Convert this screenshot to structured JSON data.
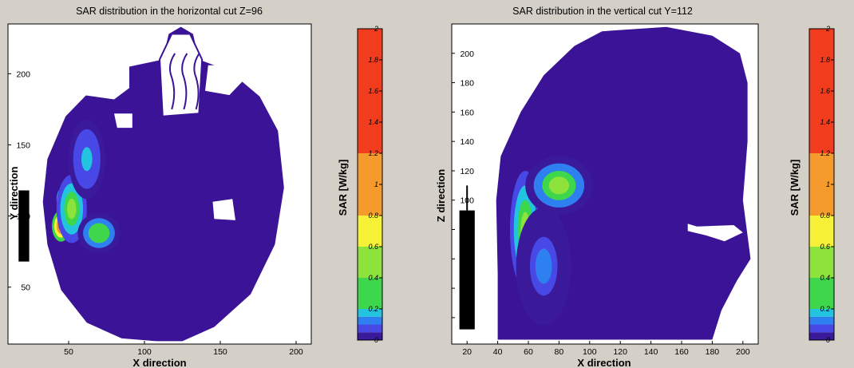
{
  "colors": {
    "figure_background": "#d4d0c8",
    "axes_background": "#ffffff",
    "tissue": "#3b1396",
    "antenna": "#000000"
  },
  "chart_data": [
    {
      "type": "heatmap",
      "title": "SAR distribution in the horizontal cut Z=96",
      "xlabel": "X direction",
      "ylabel": "Y direction",
      "xlim": [
        10,
        210
      ],
      "ylim": [
        10,
        235
      ],
      "xticks": [
        50,
        100,
        150,
        200
      ],
      "yticks": [
        50,
        100,
        150,
        200
      ],
      "colorbar": {
        "label": "SAR [W/kg]",
        "range": [
          0,
          2
        ],
        "ticks": [
          "0",
          "0.2",
          "0.4",
          "0.6",
          "0.8",
          "1",
          "1.2",
          "1.4",
          "1.6",
          "1.8",
          "2"
        ]
      },
      "head_outline": [
        [
          108,
          12
        ],
        [
          85,
          14
        ],
        [
          62,
          25
        ],
        [
          45,
          48
        ],
        [
          36,
          80
        ],
        [
          33,
          110
        ],
        [
          36,
          140
        ],
        [
          48,
          170
        ],
        [
          68,
          192
        ],
        [
          90,
          205
        ],
        [
          112,
          210
        ],
        [
          116,
          228
        ],
        [
          124,
          233
        ],
        [
          132,
          228
        ],
        [
          136,
          210
        ],
        [
          156,
          202
        ],
        [
          176,
          184
        ],
        [
          188,
          160
        ],
        [
          192,
          120
        ],
        [
          186,
          80
        ],
        [
          170,
          45
        ],
        [
          146,
          22
        ],
        [
          125,
          12
        ]
      ],
      "cavities": [
        [
          [
            60,
            185
          ],
          [
            60,
            205
          ],
          [
            78,
            210
          ],
          [
            90,
            205
          ],
          [
            90,
            190
          ],
          [
            80,
            182
          ]
        ],
        [
          [
            140,
            188
          ],
          [
            142,
            206
          ],
          [
            156,
            206
          ],
          [
            165,
            195
          ],
          [
            156,
            185
          ]
        ],
        [
          [
            82,
            162
          ],
          [
            80,
            172
          ],
          [
            92,
            172
          ],
          [
            92,
            162
          ]
        ],
        [
          [
            146,
            98
          ],
          [
            145,
            110
          ],
          [
            158,
            112
          ],
          [
            160,
            97
          ]
        ]
      ],
      "sinus_outline": [
        [
          112,
          170
        ],
        [
          110,
          210
        ],
        [
          118,
          228
        ],
        [
          130,
          228
        ],
        [
          138,
          210
        ],
        [
          136,
          172
        ]
      ],
      "antenna": {
        "x": [
          17,
          24
        ],
        "y": [
          68,
          118
        ]
      },
      "hotspots": [
        {
          "x": 45,
          "y": 93,
          "rx": 6,
          "ry": 11,
          "value": 1.8
        },
        {
          "x": 44,
          "y": 112,
          "rx": 2,
          "ry": 6,
          "value": 1.1
        },
        {
          "x": 52,
          "y": 105,
          "rx": 10,
          "ry": 24,
          "value": 0.5
        },
        {
          "x": 70,
          "y": 88,
          "rx": 14,
          "ry": 14,
          "value": 0.35
        },
        {
          "x": 62,
          "y": 140,
          "rx": 12,
          "ry": 28,
          "value": 0.15
        }
      ]
    },
    {
      "type": "heatmap",
      "title": "SAR distribution in the vertical cut Y=112",
      "xlabel": "X direction",
      "ylabel": "Z direction",
      "xlim": [
        10,
        210
      ],
      "ylim": [
        2,
        220
      ],
      "xticks": [
        20,
        40,
        60,
        80,
        100,
        120,
        140,
        160,
        180,
        200
      ],
      "yticks": [
        20,
        40,
        60,
        80,
        100,
        120,
        140,
        160,
        180,
        200
      ],
      "colorbar": {
        "label": "SAR [W/kg]",
        "range": [
          0,
          2
        ],
        "ticks": [
          "0",
          "0.2",
          "0.4",
          "0.6",
          "0.8",
          "1",
          "1.2",
          "1.4",
          "1.6",
          "1.8",
          "2"
        ]
      },
      "head_outline": [
        [
          40,
          5
        ],
        [
          40,
          50
        ],
        [
          39,
          100
        ],
        [
          42,
          130
        ],
        [
          55,
          160
        ],
        [
          70,
          185
        ],
        [
          90,
          205
        ],
        [
          108,
          215
        ],
        [
          150,
          218
        ],
        [
          180,
          212
        ],
        [
          198,
          200
        ],
        [
          203,
          180
        ],
        [
          203,
          140
        ],
        [
          200,
          100
        ],
        [
          205,
          60
        ],
        [
          196,
          45
        ],
        [
          186,
          25
        ],
        [
          180,
          5
        ]
      ],
      "cavities": [
        [
          [
            164,
            84
          ],
          [
            170,
            82
          ],
          [
            194,
            83
          ],
          [
            200,
            78
          ],
          [
            188,
            72
          ],
          [
            176,
            76
          ],
          [
            164,
            79
          ]
        ]
      ],
      "antenna": {
        "x": [
          15,
          25
        ],
        "y": [
          12,
          93
        ],
        "feed_top": 110
      },
      "hotspots": [
        {
          "x": 60,
          "y": 105,
          "rx": 3,
          "ry": 10,
          "value": 1.3
        },
        {
          "x": 58,
          "y": 80,
          "rx": 10,
          "ry": 40,
          "value": 0.5
        },
        {
          "x": 80,
          "y": 110,
          "rx": 22,
          "ry": 20,
          "value": 0.4
        },
        {
          "x": 70,
          "y": 55,
          "rx": 18,
          "ry": 40,
          "value": 0.12
        }
      ]
    }
  ]
}
